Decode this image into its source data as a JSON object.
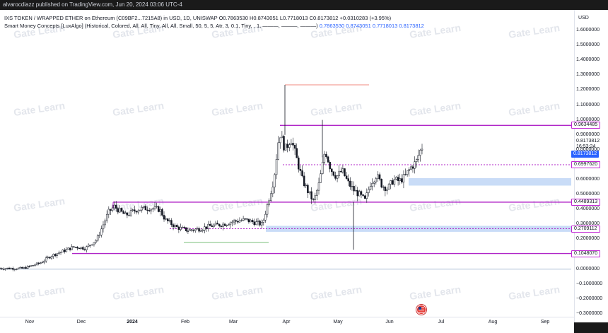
{
  "header": {
    "published_by": "alvarocdiazz published on TradingView.com, Jun 20, 2024 03:06 UTC-4"
  },
  "legend": {
    "symbol_line": "IXS TOKEN / WRAPPED ETHER on Ethereum (C09BF2...7215A8) in USD, 1D, UNISWAP  O0.7863530  H0.8743051  L0.7718013  C0.8173812  +0.0310283 (+3.95%)",
    "indicator_line": "Smart Money Concepts [LuxAlgo] (Historical, Colored, All, All, Tiny, All, All, Small, 50, 5, 5, Atr, 3, 0.1, Tiny, , 1, ———, ———, ———)",
    "indicator_values": [
      "0.7863530",
      "0.8743051",
      "0.7718013",
      "0.8173812"
    ]
  },
  "price_axis": {
    "currency": "USD",
    "ticks": [
      "1.6000000",
      "1.5000000",
      "1.4000000",
      "1.3000000",
      "1.2000000",
      "1.1000000",
      "1.0000000",
      "0.9000000",
      "0.8000000",
      "0.7000000",
      "0.6000000",
      "0.5000000",
      "0.4000000",
      "0.3000000",
      "0.2000000",
      "0.1000000",
      "0.0000000",
      "−0.1000000",
      "−0.2000000",
      "−0.3000000"
    ],
    "last_price": "0.8173812",
    "countdown": "16:53:24",
    "last_price_badge": "0.8173812",
    "level_badges": [
      "0.9634485",
      "0.6997620",
      "0.4489313",
      "0.2709112",
      "0.1048070"
    ]
  },
  "time_axis": {
    "ticks": [
      {
        "label": "Nov",
        "bold": false
      },
      {
        "label": "Dec",
        "bold": false
      },
      {
        "label": "2024",
        "bold": true
      },
      {
        "label": "Feb",
        "bold": false
      },
      {
        "label": "Mar",
        "bold": false
      },
      {
        "label": "Apr",
        "bold": false
      },
      {
        "label": "May",
        "bold": false
      },
      {
        "label": "Jun",
        "bold": false
      },
      {
        "label": "Jul",
        "bold": false
      },
      {
        "label": "Aug",
        "bold": false
      },
      {
        "label": "Sep",
        "bold": false
      }
    ]
  },
  "watermark": "Gate Learn",
  "colors": {
    "background": "#ffffff",
    "frame": "#1a1a1a",
    "candles": "#131722",
    "structure_level": "#b026c8",
    "order_block": "#bcd3f5",
    "high_marker": "#f28b82",
    "accent_blue": "#2962ff"
  },
  "chart_data": {
    "type": "candlestick",
    "title": "IXS TOKEN / WRAPPED ETHER on Ethereum (C09BF2...7215A8) in USD, 1D, UNISWAP",
    "ylim": [
      -0.33,
      1.65
    ],
    "x_ticks": [
      "Nov",
      "Dec",
      "2024",
      "Feb",
      "Mar",
      "Apr",
      "May",
      "Jun",
      "Jul",
      "Aug",
      "Sep"
    ],
    "last_ohlc": {
      "open": 0.786353,
      "high": 0.8743051,
      "low": 0.7718013,
      "close": 0.8173812,
      "change": 0.0310283,
      "change_pct": "+3.95%"
    },
    "levels": [
      {
        "price": 0.9634485,
        "style": "solid"
      },
      {
        "price": 0.699762,
        "style": "dashed"
      },
      {
        "price": 0.4489313,
        "style": "solid"
      },
      {
        "price": 0.2709112,
        "style": "dashed"
      },
      {
        "price": 0.104807,
        "style": "solid"
      }
    ],
    "order_blocks": [
      {
        "top": 0.61,
        "bottom": 0.56
      },
      {
        "top": 0.29,
        "bottom": 0.25
      }
    ],
    "swing_high": 1.235,
    "zero_line": 0.0,
    "price_path": [
      [
        0,
        0.005
      ],
      [
        0.04,
        0.005
      ],
      [
        0.07,
        0.04
      ],
      [
        0.09,
        0.09
      ],
      [
        0.11,
        0.12
      ],
      [
        0.13,
        0.15
      ],
      [
        0.15,
        0.14
      ],
      [
        0.17,
        0.2
      ],
      [
        0.19,
        0.38
      ],
      [
        0.2,
        0.42
      ],
      [
        0.22,
        0.36
      ],
      [
        0.24,
        0.4
      ],
      [
        0.26,
        0.41
      ],
      [
        0.28,
        0.4
      ],
      [
        0.29,
        0.33
      ],
      [
        0.31,
        0.28
      ],
      [
        0.33,
        0.26
      ],
      [
        0.35,
        0.27
      ],
      [
        0.37,
        0.29
      ],
      [
        0.39,
        0.3
      ],
      [
        0.41,
        0.32
      ],
      [
        0.43,
        0.33
      ],
      [
        0.45,
        0.31
      ],
      [
        0.46,
        0.3
      ],
      [
        0.47,
        0.45
      ],
      [
        0.48,
        0.6
      ],
      [
        0.49,
        0.92
      ],
      [
        0.5,
        0.8
      ],
      [
        0.51,
        0.88
      ],
      [
        0.52,
        0.74
      ],
      [
        0.53,
        0.6
      ],
      [
        0.54,
        0.52
      ],
      [
        0.55,
        0.45
      ],
      [
        0.56,
        0.58
      ],
      [
        0.57,
        0.8
      ],
      [
        0.58,
        0.67
      ],
      [
        0.59,
        0.62
      ],
      [
        0.6,
        0.66
      ],
      [
        0.61,
        0.58
      ],
      [
        0.62,
        0.53
      ],
      [
        0.63,
        0.5
      ],
      [
        0.64,
        0.46
      ],
      [
        0.65,
        0.58
      ],
      [
        0.66,
        0.63
      ],
      [
        0.67,
        0.56
      ],
      [
        0.68,
        0.54
      ],
      [
        0.69,
        0.6
      ],
      [
        0.7,
        0.59
      ],
      [
        0.71,
        0.62
      ],
      [
        0.72,
        0.68
      ],
      [
        0.73,
        0.72
      ],
      [
        0.735,
        0.78
      ],
      [
        0.74,
        0.8173812
      ]
    ]
  }
}
